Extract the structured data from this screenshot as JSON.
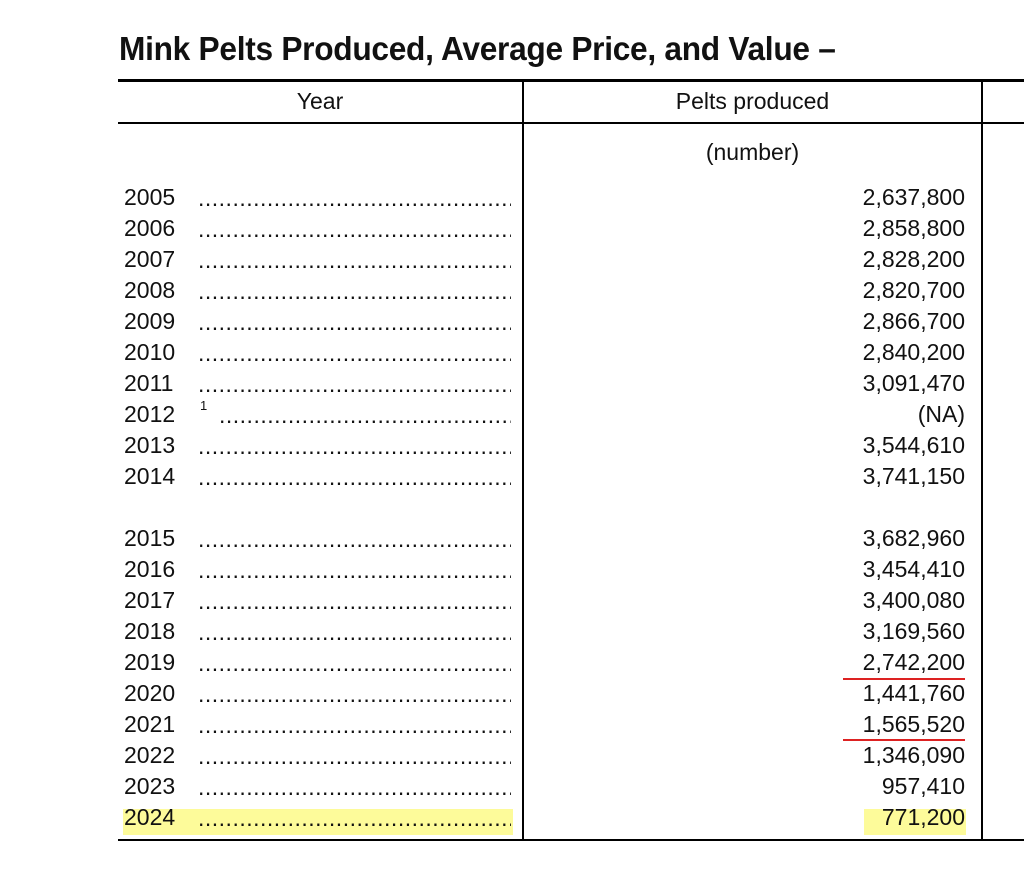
{
  "document": {
    "title": "Mink Pelts Produced, Average Price, and Value –",
    "columns": {
      "year_header": "Year",
      "pelts_header": "Pelts produced",
      "pelts_unit": "(number)"
    },
    "dots": "......................................................",
    "highlight_color": "#fdfb9a",
    "spellcheck_color": "#dd2222",
    "rows": [
      {
        "year": "2005",
        "value": "2,637,800"
      },
      {
        "year": "2006",
        "value": "2,858,800"
      },
      {
        "year": "2007",
        "value": "2,828,200"
      },
      {
        "year": "2008",
        "value": "2,820,700"
      },
      {
        "year": "2009",
        "value": "2,866,700"
      },
      {
        "year": "2010",
        "value": "2,840,200"
      },
      {
        "year": "2011",
        "value": "3,091,470"
      },
      {
        "year": "2012",
        "footnote": "1",
        "value": "(NA)"
      },
      {
        "year": "2013",
        "value": "3,544,610"
      },
      {
        "year": "2014",
        "value": "3,741,150"
      },
      {
        "year": "2015",
        "value": "3,682,960"
      },
      {
        "year": "2016",
        "value": "3,454,410"
      },
      {
        "year": "2017",
        "value": "3,400,080"
      },
      {
        "year": "2018",
        "value": "3,169,560"
      },
      {
        "year": "2019",
        "value": "2,742,200"
      },
      {
        "year": "2020",
        "value": "1,441,760"
      },
      {
        "year": "2021",
        "value": "1,565,520"
      },
      {
        "year": "2022",
        "value": "1,346,090"
      },
      {
        "year": "2023",
        "value": "957,410"
      },
      {
        "year": "2024",
        "value": "771,200"
      }
    ]
  }
}
